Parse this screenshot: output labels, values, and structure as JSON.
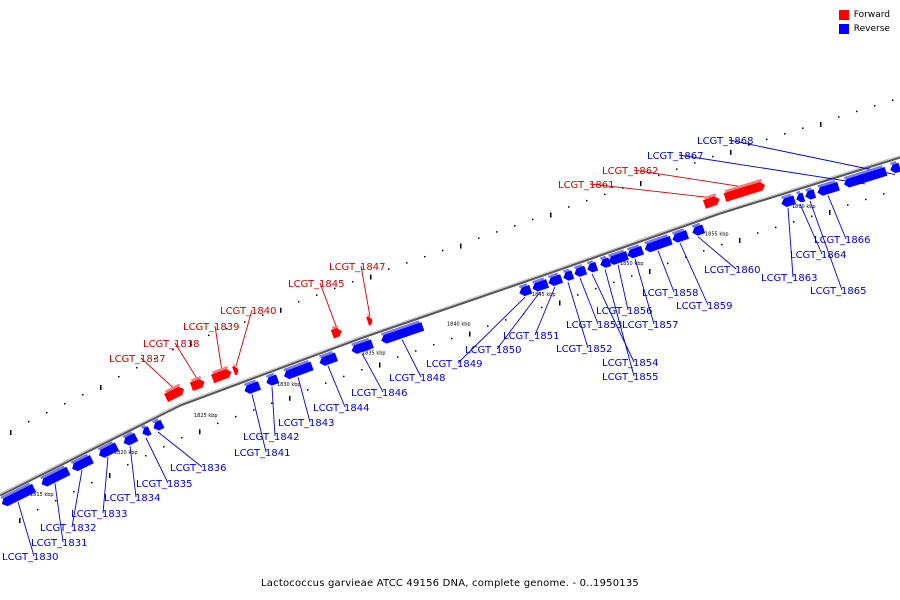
{
  "legend": [
    {
      "label": "Forward",
      "color": "#ff0000"
    },
    {
      "label": "Reverse",
      "color": "#0000ff"
    }
  ],
  "caption": "Lactococcus garvieae ATCC 49156 DNA, complete genome. - 0..1950135",
  "colors": {
    "forward": "#ff0000",
    "reverse": "#0000ff",
    "forward_label": "#cc0000",
    "reverse_label": "#0000cc",
    "axis": "#777777"
  },
  "kbp_labels": [
    "1815 kbp",
    "1820 kbp",
    "1825 kbp",
    "1830 kbp",
    "1835 kbp",
    "1840 kbp",
    "1845 kbp",
    "1850 kbp",
    "1855 kbp",
    "1860 kbp"
  ],
  "genes": [
    {
      "name": "LCGT_1830",
      "strand": "reverse"
    },
    {
      "name": "LCGT_1831",
      "strand": "reverse"
    },
    {
      "name": "LCGT_1832",
      "strand": "reverse"
    },
    {
      "name": "LCGT_1833",
      "strand": "reverse"
    },
    {
      "name": "LCGT_1834",
      "strand": "reverse"
    },
    {
      "name": "LCGT_1835",
      "strand": "reverse"
    },
    {
      "name": "LCGT_1836",
      "strand": "reverse"
    },
    {
      "name": "LCGT_1837",
      "strand": "forward"
    },
    {
      "name": "LCGT_1838",
      "strand": "forward"
    },
    {
      "name": "LCGT_1839",
      "strand": "forward"
    },
    {
      "name": "LCGT_1840",
      "strand": "forward"
    },
    {
      "name": "LCGT_1841",
      "strand": "reverse"
    },
    {
      "name": "LCGT_1842",
      "strand": "reverse"
    },
    {
      "name": "LCGT_1843",
      "strand": "reverse"
    },
    {
      "name": "LCGT_1844",
      "strand": "reverse"
    },
    {
      "name": "LCGT_1845",
      "strand": "forward"
    },
    {
      "name": "LCGT_1846",
      "strand": "reverse"
    },
    {
      "name": "LCGT_1847",
      "strand": "forward"
    },
    {
      "name": "LCGT_1848",
      "strand": "reverse"
    },
    {
      "name": "LCGT_1849",
      "strand": "reverse"
    },
    {
      "name": "LCGT_1850",
      "strand": "reverse"
    },
    {
      "name": "LCGT_1851",
      "strand": "reverse"
    },
    {
      "name": "LCGT_1852",
      "strand": "reverse"
    },
    {
      "name": "LCGT_1853",
      "strand": "reverse"
    },
    {
      "name": "LCGT_1854",
      "strand": "reverse"
    },
    {
      "name": "LCGT_1855",
      "strand": "reverse"
    },
    {
      "name": "LCGT_1856",
      "strand": "reverse"
    },
    {
      "name": "LCGT_1857",
      "strand": "reverse"
    },
    {
      "name": "LCGT_1858",
      "strand": "reverse"
    },
    {
      "name": "LCGT_1859",
      "strand": "reverse"
    },
    {
      "name": "LCGT_1860",
      "strand": "reverse"
    },
    {
      "name": "LCGT_1861",
      "strand": "forward"
    },
    {
      "name": "LCGT_1862",
      "strand": "forward"
    },
    {
      "name": "LCGT_1863",
      "strand": "reverse"
    },
    {
      "name": "LCGT_1864",
      "strand": "reverse"
    },
    {
      "name": "LCGT_1865",
      "strand": "reverse"
    },
    {
      "name": "LCGT_1866",
      "strand": "reverse"
    },
    {
      "name": "LCGT_1867",
      "strand": "reverse"
    },
    {
      "name": "LCGT_1868",
      "strand": "reverse"
    }
  ]
}
